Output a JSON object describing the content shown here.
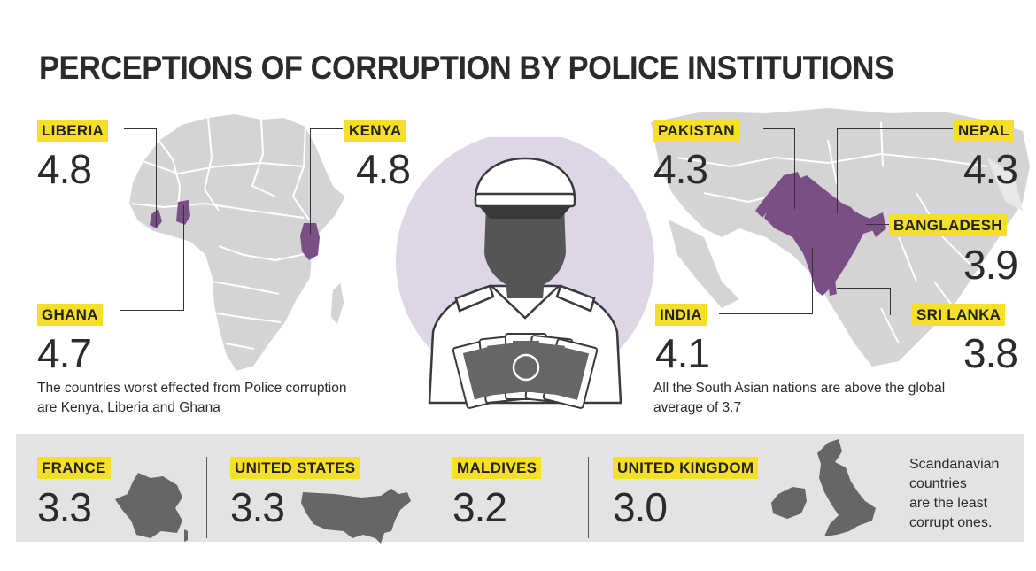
{
  "title": "PERCEPTIONS OF CORRUPTION BY POLICE INSTITUTIONS",
  "africa": {
    "liberia": {
      "name": "LIBERIA",
      "score": "4.8"
    },
    "kenya": {
      "name": "KENYA",
      "score": "4.8"
    },
    "ghana": {
      "name": "GHANA",
      "score": "4.7"
    },
    "caption_line1": "The countries worst effected from Police corruption",
    "caption_line2": "are Kenya, Liberia and Ghana"
  },
  "asia": {
    "pakistan": {
      "name": "PAKISTAN",
      "score": "4.3"
    },
    "nepal": {
      "name": "NEPAL",
      "score": "4.3"
    },
    "bangladesh": {
      "name": "BANGLADESH",
      "score": "3.9"
    },
    "india": {
      "name": "INDIA",
      "score": "4.1"
    },
    "srilanka": {
      "name": "SRI LANKA",
      "score": "3.8"
    },
    "caption_line1": "All the South Asian nations are above the global",
    "caption_line2": "average of 3.7"
  },
  "bottom": {
    "france": {
      "name": "FRANCE",
      "score": "3.3"
    },
    "usa": {
      "name": "UNITED STATES",
      "score": "3.3"
    },
    "maldives": {
      "name": "MALDIVES",
      "score": "3.2"
    },
    "uk": {
      "name": "UNITED KINGDOM",
      "score": "3.0"
    },
    "note_line1": "Scandanavian",
    "note_line2": "countries",
    "note_line3": "are the least",
    "note_line4": "corrupt ones."
  },
  "colors": {
    "highlight_yellow": "#f5df27",
    "country_purple": "#7a4f86",
    "map_grey": "#d4d4d4",
    "circle_lavender": "#ddd6e6",
    "band_grey": "#e3e3e3"
  },
  "icons": {
    "center": "police-officer-illustration",
    "africa": "africa-map",
    "asia": "south-asia-map",
    "france": "france-silhouette",
    "usa": "usa-silhouette",
    "uk": "uk-silhouette"
  }
}
